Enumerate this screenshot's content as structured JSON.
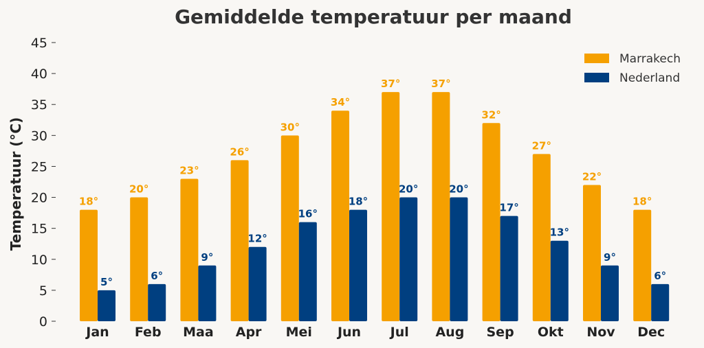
{
  "chart_data": {
    "type": "bar",
    "title": "Gemiddelde temperatuur per maand",
    "xlabel": "",
    "ylabel": "Temperatuur (°C)",
    "ylim": [
      0,
      45
    ],
    "yticks": [
      "0",
      "5",
      "10",
      "15",
      "20",
      "25",
      "30",
      "35",
      "40",
      "45"
    ],
    "categories": [
      "Jan",
      "Feb",
      "Maa",
      "Apr",
      "Mei",
      "Jun",
      "Jul",
      "Aug",
      "Sep",
      "Okt",
      "Nov",
      "Dec"
    ],
    "series": [
      {
        "name": "Marrakech",
        "color": "#f5a000",
        "values": [
          18,
          20,
          23,
          26,
          30,
          34,
          37,
          37,
          32,
          27,
          22,
          18
        ],
        "labels": [
          "18°",
          "20°",
          "23°",
          "26°",
          "30°",
          "34°",
          "37°",
          "37°",
          "32°",
          "27°",
          "22°",
          "18°"
        ]
      },
      {
        "name": "Nederland",
        "color": "#003f80",
        "values": [
          5,
          6,
          9,
          12,
          16,
          18,
          20,
          20,
          17,
          13,
          9,
          6
        ],
        "labels": [
          "5°",
          "6°",
          "9°",
          "12°",
          "16°",
          "18°",
          "20°",
          "20°",
          "17°",
          "13°",
          "9°",
          "6°"
        ]
      }
    ],
    "legend_position": "top-right",
    "grid": false
  }
}
